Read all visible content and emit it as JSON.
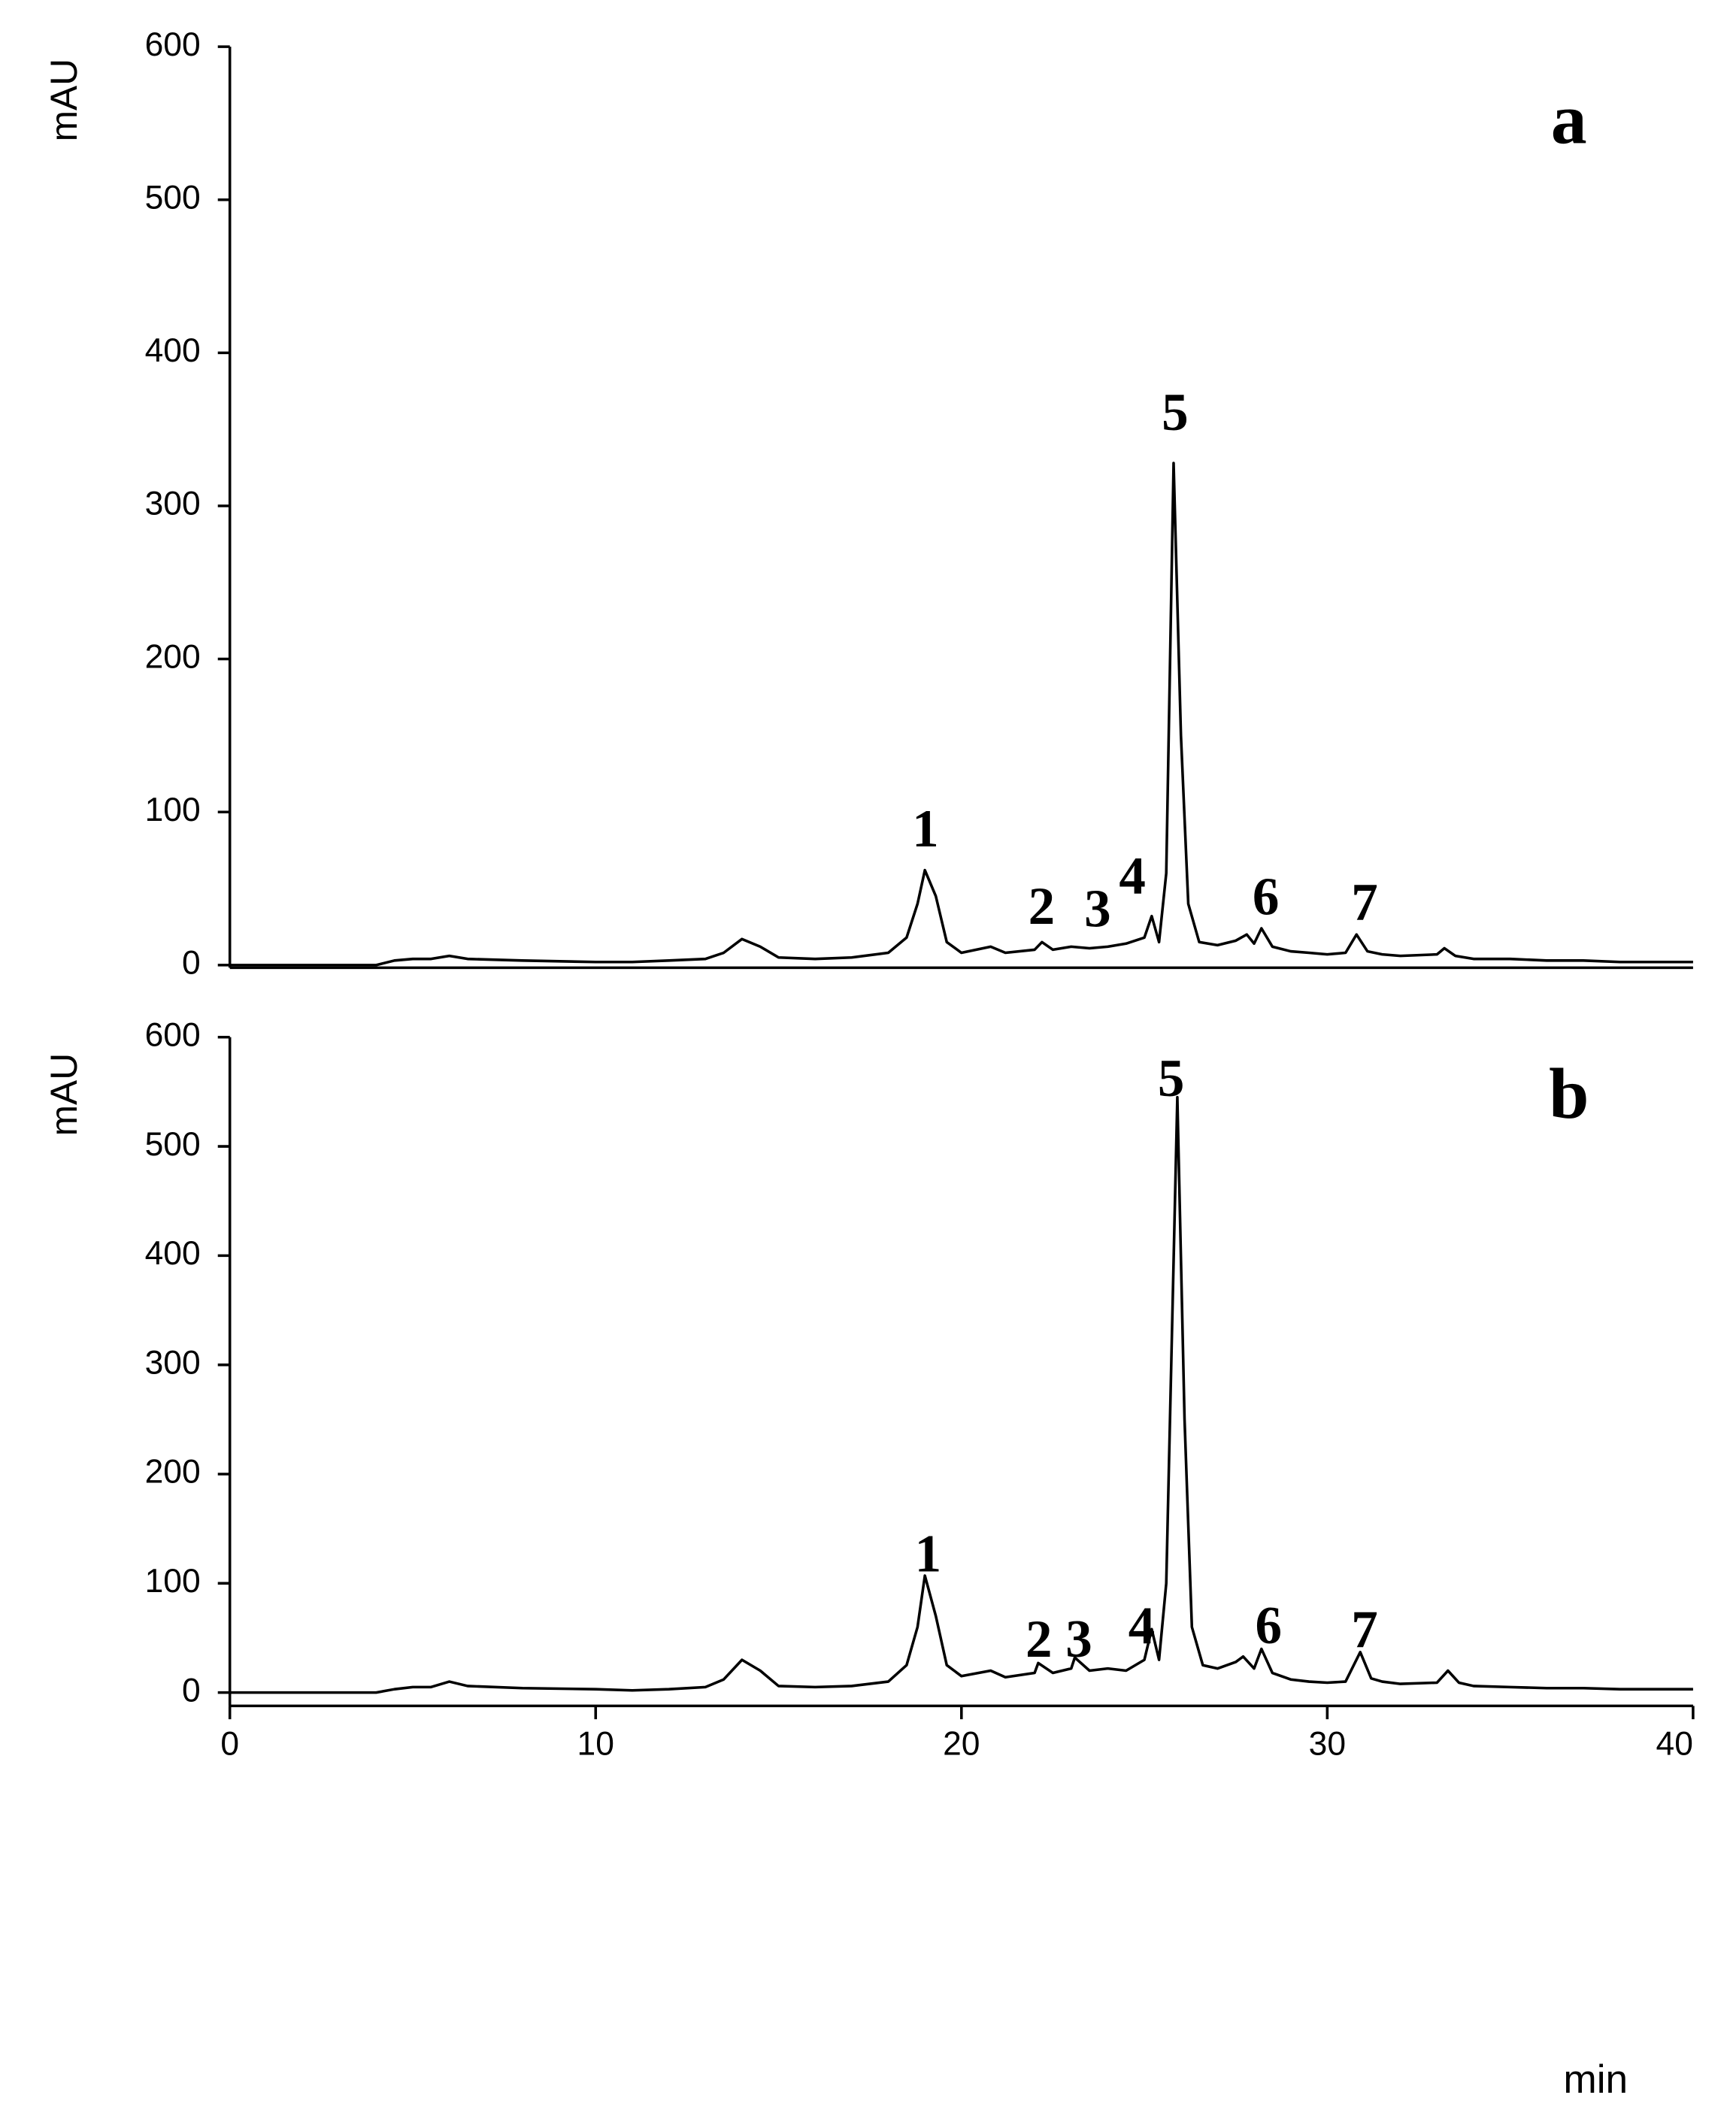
{
  "chart_data": [
    {
      "type": "line",
      "panel_label": "a",
      "ylabel": "mAU",
      "color": "#000000",
      "xlim": [
        0,
        40
      ],
      "ylim": [
        0,
        600
      ],
      "yticks": [
        0,
        100,
        200,
        300,
        400,
        500,
        600
      ],
      "annotations": [
        "1",
        "2",
        "3",
        "4",
        "5",
        "6",
        "7"
      ],
      "x": [
        0,
        4,
        4.5,
        5,
        5.5,
        6,
        6.5,
        8,
        10,
        11,
        12,
        13,
        13.5,
        14,
        14.5,
        15,
        16,
        17,
        18,
        18.5,
        18.8,
        19,
        19.3,
        19.6,
        20,
        20.8,
        21.2,
        22,
        22.2,
        22.5,
        23,
        23.5,
        24,
        24.5,
        25,
        25.2,
        25.4,
        25.6,
        25.8,
        26,
        26.2,
        26.5,
        27,
        27.5,
        27.8,
        28,
        28.2,
        28.5,
        29,
        29.5,
        30,
        30.5,
        30.8,
        31.1,
        31.5,
        32,
        33,
        33.2,
        33.5,
        34,
        35,
        36,
        37,
        38,
        40
      ],
      "values": [
        0,
        0,
        3,
        4,
        4,
        6,
        4,
        3,
        2,
        2,
        3,
        4,
        8,
        17,
        12,
        5,
        4,
        5,
        8,
        18,
        40,
        62,
        45,
        15,
        8,
        12,
        8,
        10,
        15,
        10,
        12,
        11,
        12,
        14,
        18,
        32,
        15,
        60,
        328,
        150,
        40,
        15,
        13,
        16,
        20,
        14,
        24,
        12,
        9,
        8,
        7,
        8,
        20,
        9,
        7,
        6,
        7,
        11,
        6,
        4,
        4,
        3,
        3,
        2,
        2
      ]
    },
    {
      "type": "line",
      "panel_label": "b",
      "ylabel": "mAU",
      "xlabel": "min",
      "color": "#000000",
      "xlim": [
        0,
        40
      ],
      "ylim": [
        0,
        600
      ],
      "yticks": [
        0,
        100,
        200,
        300,
        400,
        500,
        600
      ],
      "xticks": [
        0,
        10,
        20,
        30,
        40
      ],
      "annotations": [
        "1",
        "2",
        "3",
        "4",
        "5",
        "6",
        "7"
      ],
      "x": [
        0,
        4,
        4.5,
        5,
        5.5,
        6,
        6.5,
        8,
        10,
        11,
        12,
        13,
        13.5,
        14,
        14.5,
        15,
        16,
        17,
        18,
        18.5,
        18.8,
        19,
        19.3,
        19.6,
        20,
        20.8,
        21.2,
        22,
        22.1,
        22.5,
        23,
        23.1,
        23.5,
        24,
        24.5,
        25,
        25.2,
        25.4,
        25.6,
        25.9,
        26.1,
        26.3,
        26.6,
        27,
        27.5,
        27.7,
        28,
        28.2,
        28.5,
        29,
        29.5,
        30,
        30.5,
        30.9,
        31.2,
        31.5,
        32,
        33,
        33.3,
        33.6,
        34,
        35,
        36,
        37,
        38,
        40
      ],
      "values": [
        0,
        0,
        3,
        5,
        5,
        10,
        6,
        4,
        3,
        2,
        3,
        5,
        12,
        30,
        20,
        6,
        5,
        6,
        10,
        25,
        60,
        107,
        70,
        25,
        15,
        20,
        14,
        18,
        27,
        18,
        22,
        32,
        20,
        22,
        20,
        30,
        58,
        30,
        100,
        545,
        250,
        60,
        25,
        22,
        28,
        33,
        22,
        40,
        18,
        12,
        10,
        9,
        10,
        37,
        13,
        10,
        8,
        9,
        20,
        9,
        6,
        5,
        4,
        4,
        3,
        3
      ]
    }
  ]
}
